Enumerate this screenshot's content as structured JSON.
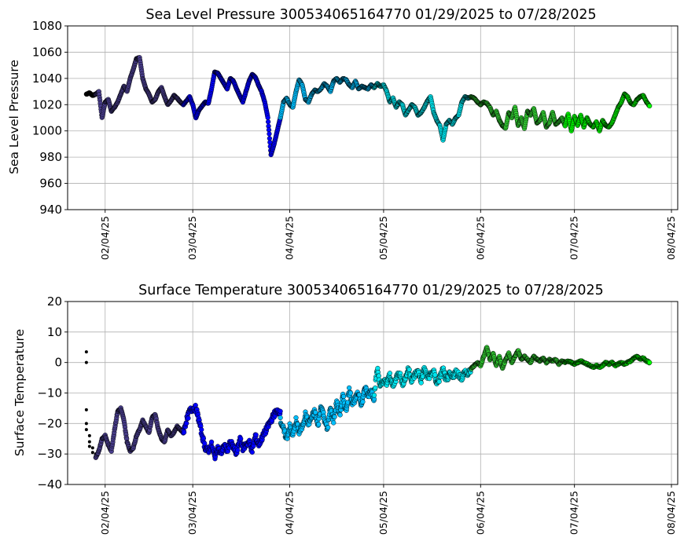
{
  "chart_data": [
    {
      "type": "scatter",
      "title": "Sea Level Pressure 300534065164770  01/29/2025 to 07/28/2025",
      "xlabel": "",
      "ylabel": "Sea Level Pressure",
      "xlim": [
        "2025-01-23",
        "2025-08-06"
      ],
      "ylim": [
        940,
        1080
      ],
      "yticks": [
        940,
        960,
        980,
        1000,
        1020,
        1040,
        1060,
        1080
      ],
      "xticks": [
        "2025-02-04",
        "2025-03-04",
        "2025-04-04",
        "2025-05-04",
        "2025-06-04",
        "2025-07-04",
        "2025-08-04"
      ],
      "xtick_labels": [
        "02/04/25",
        "03/04/25",
        "04/04/25",
        "05/04/25",
        "06/04/25",
        "07/04/25",
        "08/04/25"
      ],
      "grid": true,
      "series": [
        {
          "color": "#000000",
          "x": [
            "2025-01-29",
            "2025-01-30",
            "2025-01-31",
            "2025-02-01"
          ],
          "y": [
            1028,
            1029,
            1027,
            1028
          ]
        },
        {
          "color": "#483d8b",
          "x": [
            "2025-02-01",
            "2025-02-02",
            "2025-02-03",
            "2025-02-04",
            "2025-02-05",
            "2025-02-06",
            "2025-02-07",
            "2025-02-08",
            "2025-02-09",
            "2025-02-10",
            "2025-02-11",
            "2025-02-12",
            "2025-02-13",
            "2025-02-14",
            "2025-02-15",
            "2025-02-16",
            "2025-02-17",
            "2025-02-18",
            "2025-02-19",
            "2025-02-20",
            "2025-02-21",
            "2025-02-22",
            "2025-02-23",
            "2025-02-24",
            "2025-02-25",
            "2025-02-26",
            "2025-02-27",
            "2025-02-28",
            "2025-03-01"
          ],
          "y": [
            1028,
            1030,
            1010,
            1022,
            1024,
            1015,
            1018,
            1022,
            1028,
            1034,
            1030,
            1040,
            1047,
            1055,
            1056,
            1040,
            1032,
            1028,
            1022,
            1024,
            1030,
            1033,
            1026,
            1020,
            1023,
            1027,
            1025,
            1022,
            1020
          ]
        },
        {
          "color": "#0000ff",
          "x": [
            "2025-03-01",
            "2025-03-02",
            "2025-03-03",
            "2025-03-04",
            "2025-03-05",
            "2025-03-06",
            "2025-03-07",
            "2025-03-08",
            "2025-03-09",
            "2025-03-10",
            "2025-03-11",
            "2025-03-12",
            "2025-03-13",
            "2025-03-14",
            "2025-03-15",
            "2025-03-16",
            "2025-03-17",
            "2025-03-18",
            "2025-03-19",
            "2025-03-20",
            "2025-03-21",
            "2025-03-22",
            "2025-03-23",
            "2025-03-24",
            "2025-03-25",
            "2025-03-26",
            "2025-03-27",
            "2025-03-28",
            "2025-03-29",
            "2025-03-30",
            "2025-03-31",
            "2025-04-01"
          ],
          "y": [
            1020,
            1023,
            1026,
            1020,
            1010,
            1016,
            1019,
            1022,
            1021,
            1032,
            1045,
            1044,
            1040,
            1036,
            1032,
            1040,
            1038,
            1032,
            1027,
            1022,
            1030,
            1038,
            1043,
            1041,
            1035,
            1030,
            1022,
            1010,
            982,
            990,
            1000,
            1010
          ]
        },
        {
          "color": "#00bfff",
          "x": [
            "2025-04-01",
            "2025-04-02",
            "2025-04-03",
            "2025-04-04",
            "2025-04-05",
            "2025-04-06",
            "2025-04-07",
            "2025-04-08",
            "2025-04-09",
            "2025-04-10",
            "2025-04-11",
            "2025-04-12",
            "2025-04-13",
            "2025-04-14",
            "2025-04-15",
            "2025-04-16",
            "2025-04-17",
            "2025-04-18",
            "2025-04-19",
            "2025-04-20",
            "2025-04-21",
            "2025-04-22",
            "2025-04-23",
            "2025-04-24",
            "2025-04-25",
            "2025-04-26",
            "2025-04-27",
            "2025-04-28",
            "2025-04-29",
            "2025-04-30",
            "2025-05-01"
          ],
          "y": [
            1010,
            1022,
            1025,
            1020,
            1018,
            1030,
            1039,
            1035,
            1024,
            1022,
            1028,
            1031,
            1030,
            1032,
            1036,
            1034,
            1030,
            1038,
            1040,
            1037,
            1040,
            1039,
            1035,
            1033,
            1038,
            1032,
            1034,
            1033,
            1032,
            1035,
            1033
          ]
        },
        {
          "color": "#00e5ee",
          "x": [
            "2025-05-01",
            "2025-05-02",
            "2025-05-03",
            "2025-05-04",
            "2025-05-05",
            "2025-05-06",
            "2025-05-07",
            "2025-05-08",
            "2025-05-09",
            "2025-05-10",
            "2025-05-11",
            "2025-05-12",
            "2025-05-13",
            "2025-05-14",
            "2025-05-15",
            "2025-05-16",
            "2025-05-17",
            "2025-05-18",
            "2025-05-19",
            "2025-05-20",
            "2025-05-21",
            "2025-05-22",
            "2025-05-23",
            "2025-05-24",
            "2025-05-25",
            "2025-05-26",
            "2025-05-27",
            "2025-05-28",
            "2025-05-29",
            "2025-05-30",
            "2025-05-31",
            "2025-06-01"
          ],
          "y": [
            1033,
            1036,
            1034,
            1035,
            1030,
            1022,
            1025,
            1018,
            1022,
            1020,
            1012,
            1016,
            1020,
            1018,
            1012,
            1014,
            1018,
            1023,
            1026,
            1014,
            1008,
            1004,
            993,
            1005,
            1008,
            1005,
            1010,
            1012,
            1022,
            1026,
            1025,
            1026
          ]
        },
        {
          "color": "#32cd32",
          "x": [
            "2025-06-01",
            "2025-06-02",
            "2025-06-03",
            "2025-06-04",
            "2025-06-05",
            "2025-06-06",
            "2025-06-07",
            "2025-06-08",
            "2025-06-09",
            "2025-06-10",
            "2025-06-11",
            "2025-06-12",
            "2025-06-13",
            "2025-06-14",
            "2025-06-15",
            "2025-06-16",
            "2025-06-17",
            "2025-06-18",
            "2025-06-19",
            "2025-06-20",
            "2025-06-21",
            "2025-06-22",
            "2025-06-23",
            "2025-06-24",
            "2025-06-25",
            "2025-06-26",
            "2025-06-27",
            "2025-06-28",
            "2025-06-29",
            "2025-06-30",
            "2025-07-01"
          ],
          "y": [
            1026,
            1025,
            1022,
            1020,
            1022,
            1021,
            1018,
            1012,
            1015,
            1008,
            1004,
            1002,
            1014,
            1010,
            1018,
            1004,
            1010,
            1002,
            1015,
            1012,
            1017,
            1006,
            1008,
            1014,
            1003,
            1006,
            1014,
            1005,
            1007,
            1010,
            1004
          ]
        },
        {
          "color": "#00ff00",
          "x": [
            "2025-07-01",
            "2025-07-02",
            "2025-07-03",
            "2025-07-04",
            "2025-07-05",
            "2025-07-06",
            "2025-07-07",
            "2025-07-08",
            "2025-07-09",
            "2025-07-10",
            "2025-07-11",
            "2025-07-12",
            "2025-07-13",
            "2025-07-14",
            "2025-07-15",
            "2025-07-16",
            "2025-07-17",
            "2025-07-18",
            "2025-07-19",
            "2025-07-20",
            "2025-07-21",
            "2025-07-22",
            "2025-07-23",
            "2025-07-24",
            "2025-07-25",
            "2025-07-26",
            "2025-07-27",
            "2025-07-28"
          ],
          "y": [
            1004,
            1013,
            1000,
            1011,
            1004,
            1012,
            1003,
            1010,
            1005,
            1003,
            1007,
            1000,
            1008,
            1004,
            1003,
            1006,
            1012,
            1018,
            1022,
            1028,
            1026,
            1021,
            1020,
            1024,
            1026,
            1027,
            1022,
            1019
          ]
        }
      ]
    },
    {
      "type": "scatter",
      "title": "Surface Temperature 300534065164770  01/29/2025 to 07/28/2025",
      "xlabel": "",
      "ylabel": "Surface Temperature",
      "xlim": [
        "2025-01-23",
        "2025-08-06"
      ],
      "ylim": [
        -40,
        20
      ],
      "yticks": [
        -40,
        -30,
        -20,
        -10,
        0,
        10,
        20
      ],
      "xticks": [
        "2025-02-04",
        "2025-03-04",
        "2025-04-04",
        "2025-05-04",
        "2025-06-04",
        "2025-07-04",
        "2025-08-04"
      ],
      "xtick_labels": [
        "02/04/25",
        "03/04/25",
        "04/04/25",
        "05/04/25",
        "06/04/25",
        "07/04/25",
        "08/04/25"
      ],
      "grid": true,
      "series": [
        {
          "color": "#000000",
          "x": [
            "2025-01-29",
            "2025-01-29",
            "2025-01-29",
            "2025-01-29",
            "2025-01-29",
            "2025-01-30",
            "2025-01-30",
            "2025-01-30",
            "2025-01-31",
            "2025-01-31",
            "2025-02-01"
          ],
          "y": [
            3.5,
            0,
            -15.5,
            -20,
            -22,
            -24,
            -26,
            -27.5,
            -28,
            -29.5,
            -30
          ]
        },
        {
          "color": "#483d8b",
          "x": [
            "2025-02-01",
            "2025-02-02",
            "2025-02-03",
            "2025-02-04",
            "2025-02-05",
            "2025-02-06",
            "2025-02-07",
            "2025-02-08",
            "2025-02-09",
            "2025-02-10",
            "2025-02-11",
            "2025-02-12",
            "2025-02-13",
            "2025-02-14",
            "2025-02-15",
            "2025-02-16",
            "2025-02-17",
            "2025-02-18",
            "2025-02-19",
            "2025-02-20",
            "2025-02-21",
            "2025-02-22",
            "2025-02-23",
            "2025-02-24",
            "2025-02-25",
            "2025-02-26",
            "2025-02-27",
            "2025-02-28",
            "2025-03-01"
          ],
          "y": [
            -31,
            -29,
            -25,
            -24,
            -27,
            -29,
            -22,
            -16,
            -15,
            -19,
            -26,
            -29,
            -28,
            -24,
            -22,
            -19,
            -21,
            -23,
            -18,
            -17,
            -22,
            -25,
            -26,
            -22,
            -24,
            -23,
            -21,
            -22,
            -23
          ]
        },
        {
          "color": "#0000ff",
          "x": [
            "2025-03-01",
            "2025-03-02",
            "2025-03-03",
            "2025-03-04",
            "2025-03-05",
            "2025-03-06",
            "2025-03-07",
            "2025-03-08",
            "2025-03-09",
            "2025-03-10",
            "2025-03-11",
            "2025-03-12",
            "2025-03-13",
            "2025-03-14",
            "2025-03-15",
            "2025-03-16",
            "2025-03-17",
            "2025-03-18",
            "2025-03-19",
            "2025-03-20",
            "2025-03-21",
            "2025-03-22",
            "2025-03-23",
            "2025-03-24",
            "2025-03-25",
            "2025-03-26",
            "2025-03-27",
            "2025-03-28",
            "2025-03-29",
            "2025-03-30",
            "2025-03-31",
            "2025-04-01"
          ],
          "y": [
            -23,
            -19,
            -16,
            -15,
            -15,
            -19,
            -24,
            -28,
            -29,
            -27,
            -31,
            -28,
            -30,
            -27,
            -29,
            -26,
            -28,
            -30,
            -25,
            -28,
            -27,
            -26,
            -29,
            -24,
            -27,
            -25,
            -23,
            -21,
            -19,
            -17,
            -16,
            -16
          ]
        },
        {
          "color": "#00bfff",
          "x": [
            "2025-04-01",
            "2025-04-02",
            "2025-04-03",
            "2025-04-04",
            "2025-04-05",
            "2025-04-06",
            "2025-04-07",
            "2025-04-08",
            "2025-04-09",
            "2025-04-10",
            "2025-04-11",
            "2025-04-12",
            "2025-04-13",
            "2025-04-14",
            "2025-04-15",
            "2025-04-16",
            "2025-04-17",
            "2025-04-18",
            "2025-04-19",
            "2025-04-20",
            "2025-04-21",
            "2025-04-22",
            "2025-04-23",
            "2025-04-24",
            "2025-04-25",
            "2025-04-26",
            "2025-04-27",
            "2025-04-28",
            "2025-04-29",
            "2025-04-30",
            "2025-05-01"
          ],
          "y": [
            -19,
            -22,
            -25,
            -21,
            -24,
            -19,
            -23,
            -21,
            -17,
            -20,
            -18,
            -16,
            -21,
            -14,
            -18,
            -22,
            -15,
            -19,
            -13,
            -17,
            -11,
            -16,
            -9,
            -13,
            -12,
            -10,
            -14,
            -8,
            -11,
            -9,
            -12
          ]
        },
        {
          "color": "#00e5ee",
          "x": [
            "2025-05-01",
            "2025-05-02",
            "2025-05-03",
            "2025-05-04",
            "2025-05-05",
            "2025-05-06",
            "2025-05-07",
            "2025-05-08",
            "2025-05-09",
            "2025-05-10",
            "2025-05-11",
            "2025-05-12",
            "2025-05-13",
            "2025-05-14",
            "2025-05-15",
            "2025-05-16",
            "2025-05-17",
            "2025-05-18",
            "2025-05-19",
            "2025-05-20",
            "2025-05-21",
            "2025-05-22",
            "2025-05-23",
            "2025-05-24",
            "2025-05-25",
            "2025-05-26",
            "2025-05-27",
            "2025-05-28",
            "2025-05-29",
            "2025-05-30",
            "2025-05-31",
            "2025-06-01"
          ],
          "y": [
            -10,
            -2,
            -8,
            -6,
            -7,
            -4,
            -8,
            -5,
            -3,
            -7,
            -5,
            -2,
            -6,
            -4,
            -3,
            -6,
            -2,
            -5,
            -4,
            -3,
            -7,
            -5,
            -2,
            -6,
            -4,
            -5,
            -3,
            -4,
            -5,
            -3,
            -4,
            -2
          ]
        },
        {
          "color": "#32cd32",
          "x": [
            "2025-06-01",
            "2025-06-02",
            "2025-06-03",
            "2025-06-04",
            "2025-06-05",
            "2025-06-06",
            "2025-06-07",
            "2025-06-08",
            "2025-06-09",
            "2025-06-10",
            "2025-06-11",
            "2025-06-12",
            "2025-06-13",
            "2025-06-14",
            "2025-06-15",
            "2025-06-16",
            "2025-06-17",
            "2025-06-18",
            "2025-06-19",
            "2025-06-20",
            "2025-06-21",
            "2025-06-22",
            "2025-06-23",
            "2025-06-24",
            "2025-06-25",
            "2025-06-26",
            "2025-06-27",
            "2025-06-28",
            "2025-06-29",
            "2025-06-30",
            "2025-07-01"
          ],
          "y": [
            -2,
            -1,
            0,
            -1,
            2,
            5,
            1,
            3,
            -1,
            2,
            -2,
            1,
            3,
            0,
            2,
            4,
            1,
            2,
            1,
            0,
            2,
            1,
            0.5,
            1.5,
            0,
            1,
            0.5,
            1,
            -0.5,
            0.5,
            0
          ]
        },
        {
          "color": "#00ff00",
          "x": [
            "2025-07-01",
            "2025-07-02",
            "2025-07-03",
            "2025-07-04",
            "2025-07-05",
            "2025-07-06",
            "2025-07-07",
            "2025-07-08",
            "2025-07-09",
            "2025-07-10",
            "2025-07-11",
            "2025-07-12",
            "2025-07-13",
            "2025-07-14",
            "2025-07-15",
            "2025-07-16",
            "2025-07-17",
            "2025-07-18",
            "2025-07-19",
            "2025-07-20",
            "2025-07-21",
            "2025-07-22",
            "2025-07-23",
            "2025-07-24",
            "2025-07-25",
            "2025-07-26",
            "2025-07-27",
            "2025-07-28"
          ],
          "y": [
            0,
            0.5,
            0,
            -0.5,
            0,
            0.5,
            0,
            -0.5,
            -1,
            -1.5,
            -1,
            -1.5,
            -1,
            0,
            -0.5,
            0,
            -1,
            -0.5,
            0,
            -0.5,
            0,
            0.5,
            1.5,
            2,
            1,
            1.5,
            0.5,
            0
          ]
        }
      ]
    }
  ]
}
